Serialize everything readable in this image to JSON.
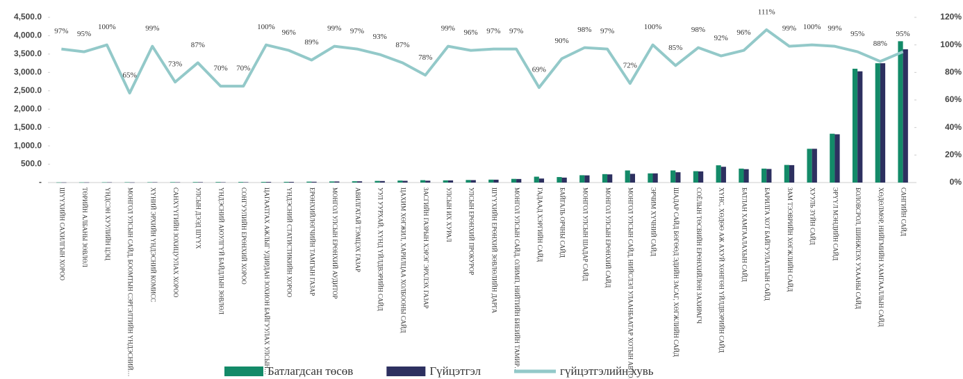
{
  "chart_data": {
    "type": "bar-line",
    "categories": [
      "ШҮҮХИЙН САХИЛГЫН ХОРОО",
      "ТӨРИЙН АЛБАНЫ ЗӨВЛӨЛ",
      "ҮНДСЭН ХУУЛИЙН ЦЭЦ",
      "МОНГОЛ УЛСЫН САЙД, БООМТЫН СЭРГЭЛТИЙН ҮНДЭСНИЙ…",
      "ХҮНИЙ ЭРХИЙН ҮНДЭСНИЙ КОМИСС",
      "САНХҮҮГИЙН ЗОХИЦУУЛАХ ХОРОО",
      "УЛСЫН ДЭЭД ШҮҮХ",
      "ҮНДЭСНИЙ АЮУЛГҮЙ БАЙДЛЫН ЗӨВЛӨЛ",
      "СОНГУУЛИЙН ЕРӨНХИЙ ХОРОО",
      "ЦАГААТГАХ АЖЛЫГ УДИРДАН ЗОХИОН БАЙГУУЛАХ УЛСЫН…",
      "ҮНДЭСНИЙ СТАТИСТИКИЙН ХОРОО",
      "ЕРӨНХИЙЛӨГЧИЙН ТАМГЫН ГАЗАР",
      "МОНГОЛ УЛСЫН ЕРӨНХИЙ АУДИТОР",
      "АВИЛГАТАЙ ТЭМЦЭХ ГАЗАР",
      "УУЛ УУРХАЙ, ХҮНД ҮЙЛДВЭРИЙН САЙД",
      "ЦАХИМ ХӨГЖИЛ, ХАРИЛЦАА ХОЛБООНЫ САЙД",
      "ЗАСГИЙН ГАЗРЫН ХЭРЭГ ЭРХЛЭХ ГАЗАР",
      "УЛСЫН ИХ ХУРАЛ",
      "УЛСЫН ЕРӨНХИЙ ПРОКУРОР",
      "ШҮҮХИЙН ЕРӨНХИЙ ЗӨВЛӨЛИЙН ДАРГА",
      "МОНГОЛ УЛСЫН САЙД, ОЛИМП, НИЙТИЙН БИЕИЙН ТАМИР…",
      "ГАДААД ХЭРГИЙН САЙД",
      "БАЙГАЛЬ ОРЧНЫ САЙД",
      "МОНГОЛ УЛСЫН ШАДАР САЙД",
      "МОНГОЛ УЛСЫН ЕРӨНХИЙ САЙД",
      "МОНГОЛ УЛСЫН САЙД, НИЙСЛЭЛ УЛААНБААТАР ХОТЫН АВТО…",
      "ЭРЧИМ ХҮЧНИЙ САЙД",
      "ШАДАР САЙД БӨГӨӨД ЭДИЙН ЗАСАГ, ХӨГЖЛИЙН САЙД",
      "СОЁЛЫН ТӨСВИЙН ЕРӨНХИЙЛӨН ЗАХИРАГЧ",
      "ХҮНС, ХӨДӨӨ АЖ АХУЙ ХӨНГӨН ҮЙЛДВЭРИЙН САЙД",
      "БАТЛАН ХАМГААЛАХЫН САЙД",
      "БАРИЛГА ХОТ БАЙГУУЛАЛТЫН САЙД",
      "ЗАМ ТЭЭВРИЙН ХӨГЖЛИЙН САЙД",
      "ХУУЛЬ ЗҮЙН САЙД",
      "ЭРҮҮЛ МЭНДИЙН САЙД",
      "БОЛОВСРОЛ, ШИНЖЛЭХ УХААНЫ САЙД",
      "ХӨДӨЛМӨР, НИЙГМИЙН ХАМГААЛЛЫН САЙД",
      "САНГИЙН САЙД"
    ],
    "series": [
      {
        "name": "Батлагдсан төсөв",
        "color": "#138a68",
        "type": "bar",
        "values": [
          5,
          6,
          8,
          10,
          10,
          12,
          14,
          15,
          16,
          18,
          20,
          25,
          30,
          35,
          45,
          55,
          65,
          60,
          70,
          80,
          100,
          160,
          150,
          200,
          230,
          330,
          250,
          330,
          310,
          470,
          380,
          380,
          480,
          920,
          1330,
          3100,
          3250,
          3850
        ]
      },
      {
        "name": "Гүйцэтгэл",
        "color": "#2d3060",
        "type": "bar",
        "values": [
          5,
          6,
          8,
          6,
          10,
          9,
          12,
          10,
          11,
          18,
          19,
          22,
          30,
          34,
          42,
          48,
          51,
          59,
          67,
          78,
          97,
          110,
          135,
          196,
          223,
          238,
          250,
          281,
          304,
          430,
          365,
          370,
          475,
          920,
          1315,
          3030,
          3250,
          3630
        ]
      },
      {
        "name": "гүйцэтгэлийн хувь",
        "color": "#93c9c9",
        "type": "line",
        "axis": "y2",
        "values": [
          97,
          95,
          100,
          65,
          99,
          73,
          87,
          70,
          70,
          100,
          96,
          89,
          99,
          97,
          93,
          87,
          78,
          99,
          96,
          97,
          97,
          69,
          90,
          98,
          97,
          72,
          100,
          85,
          98,
          92,
          96,
          111,
          99,
          100,
          99,
          95,
          88,
          95
        ],
        "value_labels": [
          "97%",
          "95%",
          "100%",
          "65%",
          "99%",
          "73%",
          "87%",
          "70%",
          "70%",
          "100%",
          "96%",
          "89%",
          "99%",
          "97%",
          "93%",
          "87%",
          "78%",
          "99%",
          "96%",
          "97%",
          "97%",
          "69%",
          "90%",
          "98%",
          "97%",
          "72%",
          "100%",
          "85%",
          "98%",
          "92%",
          "96%",
          "111%",
          "99%",
          "100%",
          "99%",
          "95%",
          "88%",
          "95%"
        ]
      }
    ],
    "ylim": [
      0,
      4500
    ],
    "yticks": [
      {
        "value": 0,
        "label": "-"
      },
      {
        "value": 500,
        "label": "500.0"
      },
      {
        "value": 1000,
        "label": "1,000.0"
      },
      {
        "value": 1500,
        "label": "1,500.0"
      },
      {
        "value": 2000,
        "label": "2,000.0"
      },
      {
        "value": 2500,
        "label": "2,500.0"
      },
      {
        "value": 3000,
        "label": "3,000.0"
      },
      {
        "value": 3500,
        "label": "3,500.0"
      },
      {
        "value": 4000,
        "label": "4,000.0"
      },
      {
        "value": 4500,
        "label": "4,500.0"
      }
    ],
    "y2lim": [
      0,
      120
    ],
    "y2ticks": [
      {
        "value": 0,
        "label": "0%"
      },
      {
        "value": 20,
        "label": "20%"
      },
      {
        "value": 40,
        "label": "40%"
      },
      {
        "value": 60,
        "label": "60%"
      },
      {
        "value": 80,
        "label": "80%"
      },
      {
        "value": 100,
        "label": "100%"
      },
      {
        "value": 120,
        "label": "120%"
      }
    ],
    "grid": false,
    "legend": "bottom"
  }
}
